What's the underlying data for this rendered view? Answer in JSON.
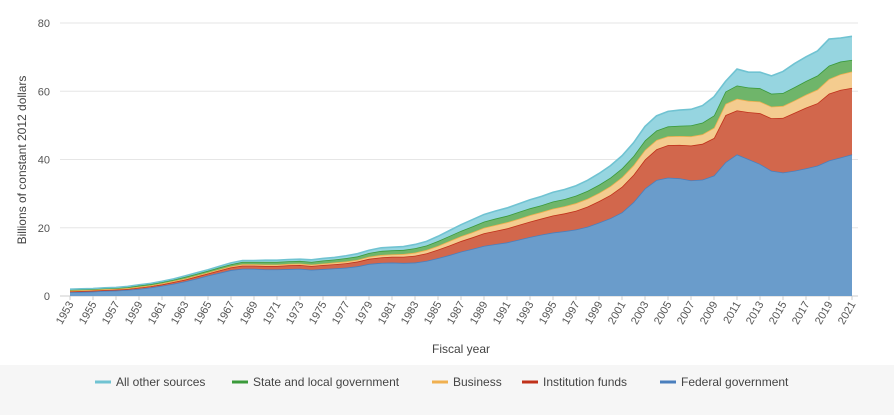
{
  "chart_data": {
    "type": "area",
    "stacked": true,
    "xlabel": "Fiscal year",
    "ylabel": "Billions of constant 2012 dollars",
    "ylim": [
      0,
      80
    ],
    "yticks": [
      0,
      20,
      40,
      60,
      80
    ],
    "x": [
      1953,
      1954,
      1955,
      1956,
      1957,
      1958,
      1959,
      1960,
      1961,
      1962,
      1963,
      1964,
      1965,
      1966,
      1967,
      1968,
      1969,
      1970,
      1971,
      1972,
      1973,
      1974,
      1975,
      1976,
      1977,
      1978,
      1979,
      1980,
      1981,
      1982,
      1983,
      1984,
      1985,
      1986,
      1987,
      1988,
      1989,
      1990,
      1991,
      1992,
      1993,
      1994,
      1995,
      1996,
      1997,
      1998,
      1999,
      2000,
      2001,
      2002,
      2003,
      2004,
      2005,
      2006,
      2007,
      2008,
      2009,
      2010,
      2011,
      2012,
      2013,
      2014,
      2015,
      2016,
      2017,
      2018,
      2019,
      2020,
      2021
    ],
    "xticks": [
      1953,
      1955,
      1957,
      1959,
      1961,
      1963,
      1965,
      1967,
      1969,
      1971,
      1973,
      1975,
      1977,
      1979,
      1981,
      1983,
      1985,
      1987,
      1989,
      1991,
      1993,
      1995,
      1997,
      1999,
      2001,
      2003,
      2005,
      2007,
      2009,
      2011,
      2013,
      2015,
      2017,
      2019,
      2021
    ],
    "grid": "horizontal",
    "legend_position": "bottom",
    "series": [
      {
        "name": "Federal government",
        "color": "#6a9ccb",
        "line_color": "#4a7fbd",
        "values": [
          1.1,
          1.2,
          1.3,
          1.5,
          1.6,
          1.8,
          2.1,
          2.5,
          3.0,
          3.6,
          4.3,
          5.1,
          6.0,
          6.8,
          7.6,
          8.0,
          8.0,
          7.8,
          7.8,
          7.9,
          8.0,
          7.7,
          7.9,
          8.1,
          8.3,
          8.7,
          9.4,
          9.7,
          9.8,
          9.7,
          9.8,
          10.3,
          11.1,
          12.0,
          13.0,
          13.8,
          14.7,
          15.2,
          15.7,
          16.5,
          17.3,
          18.0,
          18.6,
          19.0,
          19.5,
          20.3,
          21.5,
          22.8,
          24.5,
          27.5,
          31.5,
          34.0,
          34.7,
          34.5,
          33.9,
          34.1,
          35.3,
          39.2,
          41.5,
          40.1,
          38.7,
          36.7,
          36.2,
          36.7,
          37.4,
          38.2,
          39.7,
          40.6,
          41.5
        ]
      },
      {
        "name": "Institution funds",
        "color": "#d2674c",
        "line_color": "#c0311a",
        "values": [
          0.3,
          0.3,
          0.3,
          0.3,
          0.3,
          0.3,
          0.4,
          0.4,
          0.4,
          0.5,
          0.5,
          0.6,
          0.6,
          0.7,
          0.8,
          0.9,
          0.9,
          1.0,
          1.0,
          1.1,
          1.1,
          1.1,
          1.2,
          1.2,
          1.3,
          1.4,
          1.5,
          1.6,
          1.7,
          1.8,
          2.0,
          2.2,
          2.5,
          2.8,
          3.1,
          3.4,
          3.7,
          3.9,
          4.1,
          4.3,
          4.5,
          4.7,
          5.0,
          5.2,
          5.5,
          5.9,
          6.3,
          6.8,
          7.5,
          8.0,
          8.5,
          9.0,
          9.5,
          9.8,
          10.2,
          10.5,
          11.0,
          13.8,
          12.9,
          13.8,
          14.9,
          15.4,
          16.0,
          17.0,
          17.8,
          18.3,
          19.6,
          19.8,
          19.5
        ]
      },
      {
        "name": "Business",
        "color": "#f4cc8f",
        "line_color": "#f0b050",
        "values": [
          0.2,
          0.2,
          0.2,
          0.2,
          0.2,
          0.2,
          0.2,
          0.2,
          0.3,
          0.3,
          0.3,
          0.3,
          0.3,
          0.3,
          0.3,
          0.4,
          0.4,
          0.4,
          0.4,
          0.4,
          0.4,
          0.4,
          0.4,
          0.5,
          0.5,
          0.5,
          0.6,
          0.7,
          0.7,
          0.8,
          0.9,
          1.0,
          1.1,
          1.3,
          1.4,
          1.5,
          1.6,
          1.7,
          1.8,
          1.8,
          1.9,
          1.9,
          2.0,
          2.1,
          2.2,
          2.3,
          2.4,
          2.6,
          2.8,
          2.8,
          2.8,
          2.7,
          2.6,
          2.6,
          2.7,
          2.8,
          3.0,
          3.3,
          3.4,
          3.3,
          3.4,
          3.4,
          3.5,
          3.6,
          3.8,
          4.0,
          4.3,
          4.6,
          4.8
        ]
      },
      {
        "name": "State and local government",
        "color": "#6fb56a",
        "line_color": "#3a9a3a",
        "values": [
          0.3,
          0.3,
          0.3,
          0.3,
          0.3,
          0.3,
          0.4,
          0.4,
          0.4,
          0.4,
          0.5,
          0.5,
          0.5,
          0.6,
          0.6,
          0.7,
          0.7,
          0.8,
          0.8,
          0.8,
          0.8,
          0.8,
          0.9,
          0.9,
          1.0,
          1.0,
          1.1,
          1.2,
          1.2,
          1.2,
          1.3,
          1.3,
          1.4,
          1.5,
          1.6,
          1.7,
          1.8,
          1.9,
          1.9,
          2.0,
          2.0,
          2.0,
          2.1,
          2.1,
          2.2,
          2.3,
          2.4,
          2.5,
          2.6,
          2.7,
          2.8,
          2.8,
          2.9,
          3.0,
          3.2,
          3.4,
          3.6,
          3.6,
          3.9,
          3.9,
          3.9,
          3.8,
          3.8,
          3.9,
          4.0,
          4.1,
          3.9,
          3.7,
          3.4
        ]
      },
      {
        "name": "All other sources",
        "color": "#96d5e0",
        "line_color": "#70c3d2",
        "values": [
          0.1,
          0.1,
          0.1,
          0.1,
          0.1,
          0.2,
          0.2,
          0.2,
          0.2,
          0.2,
          0.3,
          0.3,
          0.3,
          0.3,
          0.4,
          0.4,
          0.4,
          0.5,
          0.5,
          0.5,
          0.5,
          0.6,
          0.6,
          0.6,
          0.7,
          0.8,
          0.8,
          0.9,
          0.9,
          1.0,
          1.1,
          1.2,
          1.4,
          1.6,
          1.8,
          2.0,
          2.1,
          2.2,
          2.3,
          2.4,
          2.5,
          2.6,
          2.7,
          2.8,
          2.9,
          3.1,
          3.3,
          3.5,
          3.7,
          3.9,
          4.1,
          4.3,
          4.4,
          4.6,
          4.7,
          5.0,
          5.5,
          3.0,
          4.8,
          4.5,
          4.7,
          5.2,
          6.3,
          6.9,
          7.1,
          7.2,
          7.8,
          6.9,
          6.9
        ]
      }
    ],
    "legend_order": [
      "All other sources",
      "State and local government",
      "Business",
      "Institution funds",
      "Federal government"
    ]
  }
}
